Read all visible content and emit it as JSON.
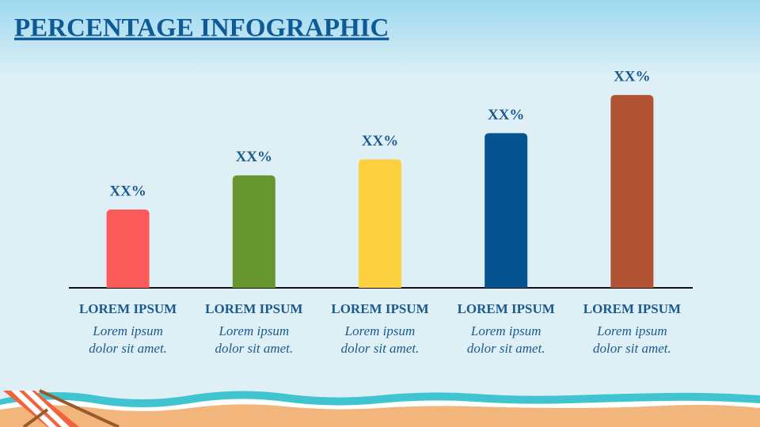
{
  "chart_data": {
    "type": "bar",
    "title": "PERCENTAGE INFOGRAPHIC",
    "categories": [
      "LOREM IPSUM",
      "LOREM IPSUM",
      "LOREM IPSUM",
      "LOREM IPSUM",
      "LOREM IPSUM"
    ],
    "descriptions": [
      [
        "Lorem ipsum",
        "dolor sit amet."
      ],
      [
        "Lorem ipsum",
        "dolor sit amet."
      ],
      [
        "Lorem ipsum",
        "dolor sit amet."
      ],
      [
        "Lorem ipsum",
        "dolor sit amet."
      ],
      [
        "Lorem ipsum",
        "dolor sit amet."
      ]
    ],
    "values": [
      39,
      56,
      64,
      77,
      96
    ],
    "value_labels": [
      "XX%",
      "XX%",
      "XX%",
      "XX%",
      "XX%"
    ],
    "colors": [
      "#fc5b5b",
      "#679530",
      "#fcd03f",
      "#05548f",
      "#b05434"
    ],
    "ylim": [
      0,
      100
    ]
  }
}
